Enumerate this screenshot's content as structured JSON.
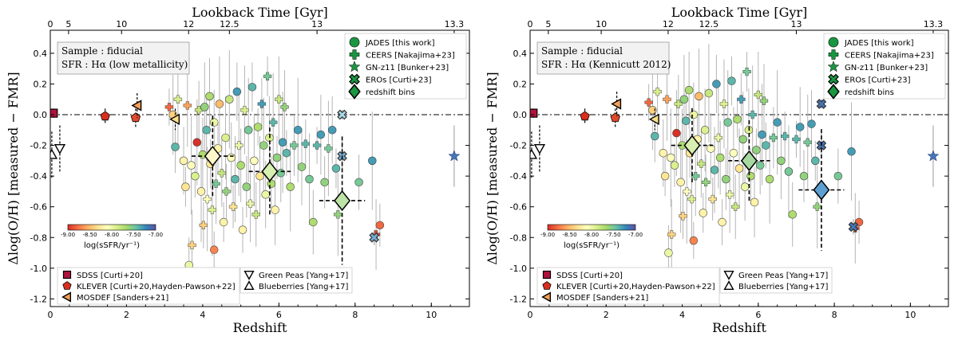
{
  "chart_data": [
    {
      "type": "scatter",
      "panel": "left",
      "xlabel": "Redshift",
      "ylabel": "Δlog(O/H) [measured − FMR]",
      "top_xlabel": "Lookback Time [Gyr]",
      "xlim": [
        0,
        11
      ],
      "ylim": [
        -1.25,
        0.55
      ],
      "x_ticks": [
        0,
        2,
        4,
        6,
        8,
        10
      ],
      "y_ticks": [
        -1.2,
        -1.0,
        -0.8,
        -0.6,
        -0.4,
        -0.2,
        0.0,
        0.2,
        0.4
      ],
      "top_ticks": [
        {
          "label": "0",
          "z": 0
        },
        {
          "label": "5",
          "z": 0.48
        },
        {
          "label": "10",
          "z": 1.87
        },
        {
          "label": "12",
          "z": 3.63
        },
        {
          "label": "12.5",
          "z": 4.7
        },
        {
          "label": "13",
          "z": 7.0
        },
        {
          "label": "13.3",
          "z": 10.6
        }
      ],
      "sample_box": [
        "Sample : fiducial",
        "SFR : Hα (low metallicity)"
      ],
      "reference_line_y": 0.0,
      "redshift_bins": [
        {
          "z": 4.26,
          "dz": 0.55,
          "y": -0.27,
          "dy": 0.12,
          "color": "#fff6c9"
        },
        {
          "z": 5.76,
          "dz": 0.55,
          "y": -0.37,
          "dy": 0.13,
          "color": "#d7efb0"
        },
        {
          "z": 7.66,
          "dz": 0.6,
          "y": -0.56,
          "dy": 0.19,
          "color": "#bde3a6"
        }
      ],
      "local_samples": [
        {
          "name": "SDSS",
          "marker": "square",
          "z": 0.08,
          "y": 0.01,
          "dy": 0.03,
          "color": "#b0123b"
        },
        {
          "name": "KLEVER",
          "marker": "pentagon",
          "z": 1.44,
          "y": -0.01,
          "dy": 0.05,
          "color": "#d7301f"
        },
        {
          "name": "KLEVER",
          "marker": "pentagon",
          "z": 2.24,
          "y": -0.02,
          "dy": 0.06,
          "color": "#e04a2d"
        },
        {
          "name": "MOSDEF",
          "marker": "tri-left",
          "z": 2.28,
          "y": 0.06,
          "dy": 0.08,
          "color": "#f4a259"
        },
        {
          "name": "MOSDEF",
          "marker": "tri-left",
          "z": 3.28,
          "y": -0.03,
          "dy": 0.07,
          "color": "#fee08b"
        },
        {
          "name": "Green Peas",
          "marker": "tri-down",
          "z": 0.25,
          "y": -0.22,
          "dy": 0.15,
          "color": "#ffffff"
        },
        {
          "name": "Blueberries",
          "marker": "tri-up",
          "z": 0.04,
          "y": -0.26,
          "dy": 0.15,
          "color": "#ffffff"
        }
      ],
      "special_points": [
        {
          "name": "GN-z11",
          "marker": "star",
          "z": 10.6,
          "y": -0.27,
          "dy": 0.2,
          "color": "#4575b4"
        },
        {
          "name": "ERO",
          "marker": "x",
          "z": 7.66,
          "y": 0.0,
          "dy": 0.03,
          "color": "#abd9e9"
        },
        {
          "name": "ERO",
          "marker": "x",
          "z": 7.66,
          "y": -0.27,
          "dy": 0.1,
          "color": "#74add1"
        },
        {
          "name": "ERO",
          "marker": "x",
          "z": 8.5,
          "y": -0.8,
          "dy": 0.05,
          "color": "#74add1"
        }
      ],
      "jades_points": [
        [
          3.12,
          0.05,
          -8.8
        ],
        [
          3.22,
          0.0,
          -8.4
        ],
        [
          3.28,
          -0.21,
          -7.4
        ],
        [
          3.35,
          0.1,
          -7.9
        ],
        [
          3.5,
          -0.3,
          -8.2
        ],
        [
          3.55,
          -0.47,
          -8.3
        ],
        [
          3.6,
          0.06,
          -8.6
        ],
        [
          3.64,
          -0.98,
          -8.0
        ],
        [
          3.7,
          -0.33,
          -8.1
        ],
        [
          3.72,
          -0.85,
          -8.4
        ],
        [
          3.8,
          -0.4,
          -7.9
        ],
        [
          3.85,
          -0.18,
          -9.0
        ],
        [
          3.9,
          0.03,
          -7.8
        ],
        [
          3.96,
          -0.5,
          -8.2
        ],
        [
          4.0,
          -0.26,
          -7.7
        ],
        [
          4.02,
          -0.72,
          -8.4
        ],
        [
          4.05,
          0.05,
          -7.6
        ],
        [
          4.1,
          -0.1,
          -7.4
        ],
        [
          4.12,
          -0.55,
          -8.1
        ],
        [
          4.18,
          0.12,
          -7.7
        ],
        [
          4.2,
          -0.32,
          -8.3
        ],
        [
          4.25,
          -0.62,
          -7.9
        ],
        [
          4.3,
          -0.05,
          -8.0
        ],
        [
          4.3,
          -0.88,
          -8.7
        ],
        [
          4.35,
          -0.45,
          -7.5
        ],
        [
          4.4,
          -0.22,
          -8.2
        ],
        [
          4.44,
          0.07,
          -8.5
        ],
        [
          4.5,
          -0.38,
          -7.8
        ],
        [
          4.55,
          -0.7,
          -8.2
        ],
        [
          4.6,
          -0.15,
          -7.9
        ],
        [
          4.62,
          -0.5,
          -7.6
        ],
        [
          4.7,
          0.1,
          -7.8
        ],
        [
          4.75,
          -0.28,
          -8.1
        ],
        [
          4.8,
          -0.6,
          -8.3
        ],
        [
          4.85,
          -0.42,
          -7.4
        ],
        [
          4.9,
          0.15,
          -7.3
        ],
        [
          4.95,
          -0.2,
          -8.0
        ],
        [
          5.0,
          -0.33,
          -7.7
        ],
        [
          5.05,
          -0.75,
          -8.2
        ],
        [
          5.1,
          0.03,
          -7.9
        ],
        [
          5.15,
          -0.47,
          -7.6
        ],
        [
          5.2,
          -0.1,
          -7.5
        ],
        [
          5.25,
          -0.58,
          -8.0
        ],
        [
          5.3,
          0.18,
          -7.4
        ],
        [
          5.35,
          -0.3,
          -8.1
        ],
        [
          5.4,
          -0.65,
          -7.8
        ],
        [
          5.45,
          -0.08,
          -7.7
        ],
        [
          5.5,
          -0.4,
          -8.3
        ],
        [
          5.55,
          0.07,
          -7.3
        ],
        [
          5.6,
          -0.2,
          -7.6
        ],
        [
          5.65,
          -0.52,
          -8.0
        ],
        [
          5.7,
          0.25,
          -7.5
        ],
        [
          5.75,
          -0.15,
          -7.9
        ],
        [
          5.8,
          -0.45,
          -7.7
        ],
        [
          5.85,
          -0.05,
          -7.4
        ],
        [
          5.9,
          -0.62,
          -8.2
        ],
        [
          5.95,
          -0.28,
          -7.6
        ],
        [
          6.0,
          0.1,
          -7.8
        ],
        [
          6.05,
          -0.38,
          -7.5
        ],
        [
          6.1,
          -0.18,
          -7.3
        ],
        [
          6.15,
          0.05,
          -7.6
        ],
        [
          6.2,
          -0.25,
          -7.4
        ],
        [
          6.3,
          -0.47,
          -7.7
        ],
        [
          6.4,
          -0.2,
          -7.5
        ],
        [
          6.5,
          -0.1,
          -7.3
        ],
        [
          6.6,
          -0.34,
          -7.6
        ],
        [
          6.7,
          -0.19,
          -7.4
        ],
        [
          6.8,
          -0.42,
          -7.5
        ],
        [
          6.9,
          -0.7,
          -7.7
        ],
        [
          7.0,
          -0.2,
          -7.4
        ],
        [
          7.1,
          -0.13,
          -7.3
        ],
        [
          7.2,
          -0.44,
          -7.6
        ],
        [
          7.3,
          -0.22,
          -7.5
        ],
        [
          7.4,
          -0.1,
          -7.3
        ],
        [
          7.5,
          -0.35,
          -7.4
        ],
        [
          7.55,
          -0.65,
          -7.6
        ],
        [
          8.1,
          -0.44,
          -7.5
        ],
        [
          8.45,
          -0.3,
          -7.3
        ],
        [
          8.55,
          -0.78,
          -8.9
        ],
        [
          8.65,
          -0.72,
          -8.8
        ]
      ]
    },
    {
      "type": "scatter",
      "panel": "right",
      "xlabel": "Redshift",
      "ylabel": "Δlog(O/H) [measured − FMR]",
      "top_xlabel": "Lookback Time [Gyr]",
      "xlim": [
        0,
        11
      ],
      "ylim": [
        -1.25,
        0.55
      ],
      "x_ticks": [
        0,
        2,
        4,
        6,
        8,
        10
      ],
      "y_ticks": [
        -1.2,
        -1.0,
        -0.8,
        -0.6,
        -0.4,
        -0.2,
        0.0,
        0.2,
        0.4
      ],
      "top_ticks": [
        {
          "label": "0",
          "z": 0
        },
        {
          "label": "5",
          "z": 0.48
        },
        {
          "label": "10",
          "z": 1.87
        },
        {
          "label": "12",
          "z": 3.63
        },
        {
          "label": "12.5",
          "z": 4.7
        },
        {
          "label": "13",
          "z": 7.0
        },
        {
          "label": "13.3",
          "z": 10.6
        }
      ],
      "sample_box": [
        "Sample : fiducial",
        "SFR : Hα (Kennicutt 2012)"
      ],
      "reference_line_y": 0.0,
      "redshift_bins": [
        {
          "z": 4.26,
          "dz": 0.55,
          "y": -0.2,
          "dy": 0.11,
          "color": "#d7efb0"
        },
        {
          "z": 5.76,
          "dz": 0.55,
          "y": -0.3,
          "dy": 0.12,
          "color": "#a6d9a0"
        },
        {
          "z": 7.66,
          "dz": 0.6,
          "y": -0.49,
          "dy": 0.18,
          "color": "#5e9fd1"
        }
      ],
      "local_samples": [
        {
          "name": "SDSS",
          "marker": "square",
          "z": 0.08,
          "y": 0.01,
          "dy": 0.03,
          "color": "#b0123b"
        },
        {
          "name": "KLEVER",
          "marker": "pentagon",
          "z": 1.44,
          "y": -0.01,
          "dy": 0.05,
          "color": "#d7301f"
        },
        {
          "name": "KLEVER",
          "marker": "pentagon",
          "z": 2.24,
          "y": -0.02,
          "dy": 0.06,
          "color": "#e04a2d"
        },
        {
          "name": "MOSDEF",
          "marker": "tri-left",
          "z": 2.28,
          "y": 0.07,
          "dy": 0.08,
          "color": "#f4a259"
        },
        {
          "name": "MOSDEF",
          "marker": "tri-left",
          "z": 3.28,
          "y": -0.03,
          "dy": 0.07,
          "color": "#fee08b"
        },
        {
          "name": "Green Peas",
          "marker": "tri-down",
          "z": 0.25,
          "y": -0.22,
          "dy": 0.15,
          "color": "#ffffff"
        },
        {
          "name": "Blueberries",
          "marker": "tri-up",
          "z": 0.04,
          "y": -0.26,
          "dy": 0.15,
          "color": "#ffffff"
        }
      ],
      "special_points": [
        {
          "name": "GN-z11",
          "marker": "star",
          "z": 10.6,
          "y": -0.27,
          "dy": 0.2,
          "color": "#4575b4"
        },
        {
          "name": "ERO",
          "marker": "x",
          "z": 7.66,
          "y": 0.07,
          "dy": 0.03,
          "color": "#4575b4"
        },
        {
          "name": "ERO",
          "marker": "x",
          "z": 7.66,
          "y": -0.2,
          "dy": 0.08,
          "color": "#4575b4"
        },
        {
          "name": "ERO",
          "marker": "x",
          "z": 8.5,
          "y": -0.73,
          "dy": 0.05,
          "color": "#4575b4"
        }
      ],
      "jades_points": [
        [
          3.12,
          0.08,
          -8.8
        ],
        [
          3.22,
          0.03,
          -8.4
        ],
        [
          3.28,
          -0.14,
          -7.4
        ],
        [
          3.35,
          0.15,
          -7.9
        ],
        [
          3.5,
          -0.25,
          -8.2
        ],
        [
          3.55,
          -0.4,
          -8.3
        ],
        [
          3.6,
          0.1,
          -8.6
        ],
        [
          3.64,
          -0.9,
          -8.0
        ],
        [
          3.7,
          -0.28,
          -8.1
        ],
        [
          3.72,
          -0.78,
          -8.4
        ],
        [
          3.8,
          -0.33,
          -7.9
        ],
        [
          3.85,
          -0.12,
          -9.0
        ],
        [
          3.9,
          0.07,
          -7.8
        ],
        [
          3.96,
          -0.44,
          -8.2
        ],
        [
          4.0,
          -0.2,
          -7.7
        ],
        [
          4.02,
          -0.66,
          -8.4
        ],
        [
          4.05,
          0.1,
          -7.6
        ],
        [
          4.1,
          -0.04,
          -7.4
        ],
        [
          4.12,
          -0.5,
          -8.1
        ],
        [
          4.18,
          0.16,
          -7.7
        ],
        [
          4.2,
          -0.25,
          -8.3
        ],
        [
          4.25,
          -0.55,
          -7.9
        ],
        [
          4.3,
          0.0,
          -8.0
        ],
        [
          4.3,
          -0.82,
          -8.7
        ],
        [
          4.35,
          -0.4,
          -7.5
        ],
        [
          4.4,
          -0.16,
          -8.2
        ],
        [
          4.44,
          0.12,
          -8.5
        ],
        [
          4.5,
          -0.32,
          -7.8
        ],
        [
          4.55,
          -0.64,
          -8.2
        ],
        [
          4.6,
          -0.1,
          -7.9
        ],
        [
          4.62,
          -0.44,
          -7.6
        ],
        [
          4.7,
          0.14,
          -7.8
        ],
        [
          4.75,
          -0.22,
          -8.1
        ],
        [
          4.8,
          -0.55,
          -8.3
        ],
        [
          4.85,
          -0.36,
          -7.4
        ],
        [
          4.9,
          0.2,
          -7.3
        ],
        [
          4.95,
          -0.15,
          -8.0
        ],
        [
          5.0,
          -0.28,
          -7.7
        ],
        [
          5.05,
          -0.7,
          -8.2
        ],
        [
          5.1,
          0.07,
          -7.9
        ],
        [
          5.15,
          -0.42,
          -7.6
        ],
        [
          5.2,
          -0.05,
          -7.5
        ],
        [
          5.25,
          -0.52,
          -8.0
        ],
        [
          5.3,
          0.22,
          -7.4
        ],
        [
          5.35,
          -0.25,
          -8.1
        ],
        [
          5.4,
          -0.6,
          -7.8
        ],
        [
          5.45,
          -0.03,
          -7.7
        ],
        [
          5.5,
          -0.35,
          -8.3
        ],
        [
          5.55,
          0.1,
          -7.3
        ],
        [
          5.6,
          -0.16,
          -7.6
        ],
        [
          5.65,
          -0.47,
          -8.0
        ],
        [
          5.7,
          0.28,
          -7.5
        ],
        [
          5.75,
          -0.1,
          -7.9
        ],
        [
          5.8,
          -0.4,
          -7.7
        ],
        [
          5.85,
          0.0,
          -7.4
        ],
        [
          5.9,
          -0.57,
          -8.2
        ],
        [
          5.95,
          -0.23,
          -7.6
        ],
        [
          6.0,
          0.13,
          -7.8
        ],
        [
          6.05,
          -0.33,
          -7.5
        ],
        [
          6.1,
          -0.13,
          -7.3
        ],
        [
          6.15,
          0.09,
          -7.6
        ],
        [
          6.2,
          -0.2,
          -7.4
        ],
        [
          6.3,
          -0.42,
          -7.7
        ],
        [
          6.4,
          -0.15,
          -7.5
        ],
        [
          6.5,
          -0.05,
          -7.3
        ],
        [
          6.6,
          -0.3,
          -7.6
        ],
        [
          6.7,
          -0.14,
          -7.4
        ],
        [
          6.8,
          -0.37,
          -7.5
        ],
        [
          6.9,
          -0.65,
          -7.7
        ],
        [
          7.0,
          -0.16,
          -7.4
        ],
        [
          7.1,
          -0.08,
          -7.3
        ],
        [
          7.2,
          -0.4,
          -7.6
        ],
        [
          7.3,
          -0.18,
          -7.5
        ],
        [
          7.4,
          -0.06,
          -7.3
        ],
        [
          7.5,
          -0.3,
          -7.4
        ],
        [
          7.55,
          -0.6,
          -7.6
        ],
        [
          8.1,
          -0.4,
          -7.5
        ],
        [
          8.45,
          -0.24,
          -7.3
        ],
        [
          8.55,
          -0.74,
          -8.9
        ],
        [
          8.65,
          -0.7,
          -8.8
        ]
      ]
    }
  ],
  "legend_upper": [
    {
      "marker": "circle",
      "label": "JADES [this work]"
    },
    {
      "marker": "plus",
      "label": "CEERS [Nakajima+23]"
    },
    {
      "marker": "star",
      "label": "GN-z11 [Bunker+23]"
    },
    {
      "marker": "x",
      "label": "EROs [Curti+23]"
    },
    {
      "marker": "diamond",
      "label": "redshift bins"
    }
  ],
  "legend_lower_left": [
    {
      "marker": "square",
      "label": "SDSS [Curti+20]"
    },
    {
      "marker": "pentagon",
      "label": "KLEVER [Curti+20,Hayden-Pawson+22]"
    },
    {
      "marker": "tri-left",
      "label": "MOSDEF [Sanders+21]"
    }
  ],
  "legend_lower_right": [
    {
      "marker": "tri-down",
      "label": "Green Peas [Yang+17]"
    },
    {
      "marker": "tri-up",
      "label": "Blueberries [Yang+17]"
    }
  ],
  "colorbar": {
    "ticks": [
      "-9.00",
      "-8.50",
      "-8.00",
      "-7.50",
      "-7.00"
    ],
    "range": [
      -9.0,
      -7.0
    ],
    "label": "log(sSFR/yr⁻¹)",
    "colors": [
      "#d73027",
      "#f46d43",
      "#fdae61",
      "#fee08b",
      "#ffffbf",
      "#d9ef8b",
      "#a6d96a",
      "#66c2a5",
      "#3288bd",
      "#5e4fa2"
    ]
  },
  "legend_colors": {
    "green": "#1a9641",
    "dark": "#000000",
    "sdss": "#b0123b",
    "klever": "#d7301f",
    "mosdef": "#f4a259"
  }
}
